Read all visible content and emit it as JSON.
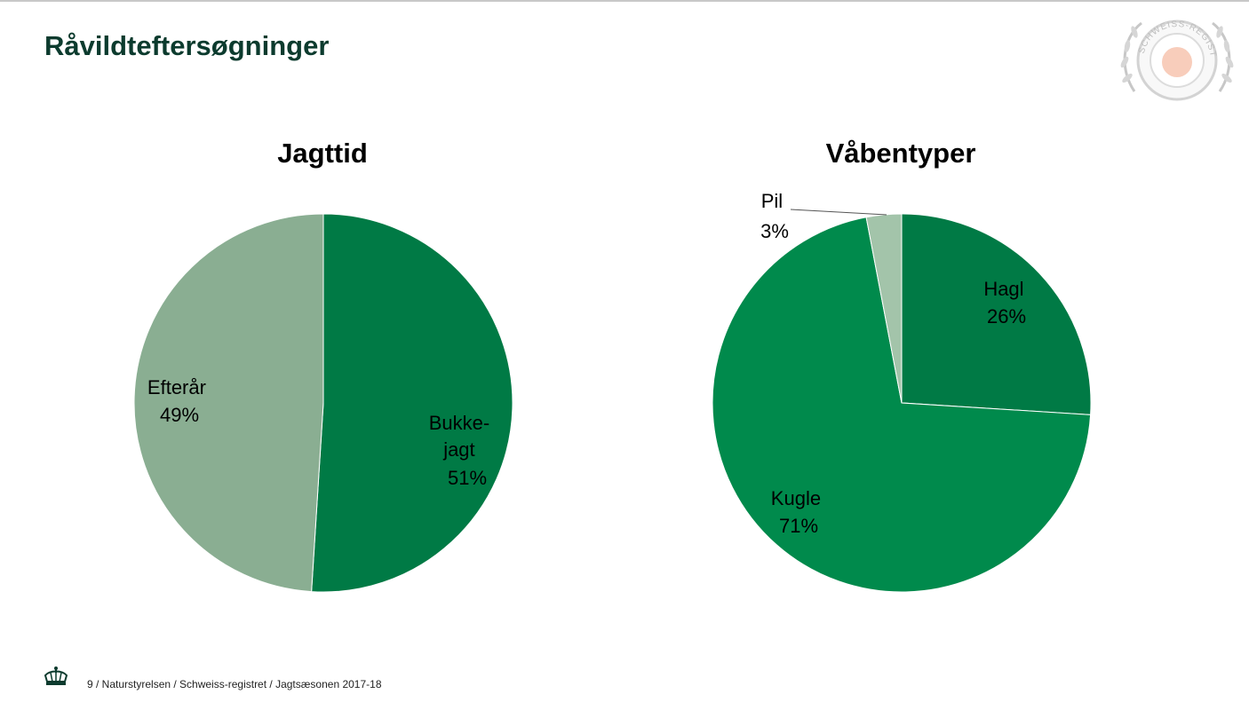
{
  "slide": {
    "title": "Råvildteftersøgninger",
    "footer": "9 / Naturstyrelsen / Schweiss-registret / Jagtsæsonen 2017-18",
    "seal_text": "SCHWEISS-REGISTRET"
  },
  "colors": {
    "title": "#0c3b2e",
    "dark_green": "#007a45",
    "mid_green": "#008a4c",
    "light_green": "#8aae92",
    "pale_green": "#a3c4aa"
  },
  "chart_data": [
    {
      "type": "pie",
      "title": "Jagttid",
      "slices": [
        {
          "label_lines": [
            "Bukke-",
            "jagt",
            "51%"
          ],
          "value": 51,
          "color": "#007a45"
        },
        {
          "label_lines": [
            "Efterår",
            "49%"
          ],
          "value": 49,
          "color": "#8aae92"
        }
      ]
    },
    {
      "type": "pie",
      "title": "Våbentyper",
      "slices": [
        {
          "label_lines": [
            "Hagl",
            "26%"
          ],
          "value": 26,
          "color": "#007a45"
        },
        {
          "label_lines": [
            "Kugle",
            "71%"
          ],
          "value": 71,
          "color": "#008a4c"
        },
        {
          "label_lines": [
            "Pil",
            "3%"
          ],
          "value": 3,
          "color": "#a3c4aa"
        }
      ]
    }
  ]
}
